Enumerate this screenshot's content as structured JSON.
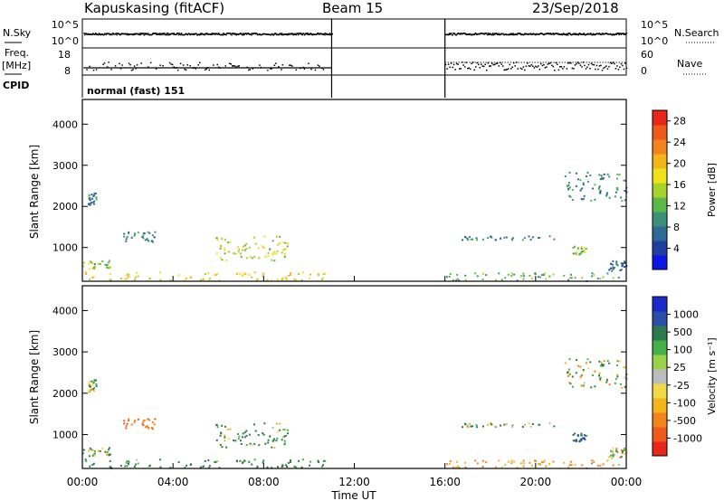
{
  "header": {
    "station": "Kapuskasing (fitACF)",
    "beam": "Beam 15",
    "date": "23/Sep/2018"
  },
  "colors": {
    "power_scale": [
      "#0b16e6",
      "#1f3f9e",
      "#2e6a96",
      "#3d8f7a",
      "#5cb848",
      "#a6d22a",
      "#f0e21a",
      "#f4b51c",
      "#f2841e",
      "#ee5a1c",
      "#e8261a"
    ],
    "velocity_scale": [
      "#e8261a",
      "#ee5a1c",
      "#f2841e",
      "#f4b51c",
      "#f2d94a",
      "#bdbdbd",
      "#9ad04a",
      "#43b04a",
      "#2e7a4f",
      "#2a4fa8",
      "#1b2ac8"
    ],
    "ground_scatter": "#8c8c8c"
  },
  "chart_data": [
    {
      "type": "line",
      "name": "summary",
      "labels": {
        "nsky": "N.Sky",
        "freq": "Freq.",
        "freq_unit": "[MHz]",
        "cpid": "CPID",
        "nsearch": "N.Search",
        "nave": "Nave",
        "mode": "normal (fast) 151"
      },
      "left_ticks": {
        "noise": [
          "10^5",
          "10^0"
        ],
        "freq": [
          "18",
          "8"
        ]
      },
      "right_ticks": {
        "noise": [
          "10^5",
          "10^0"
        ],
        "nave": [
          "60",
          "0"
        ]
      },
      "gap_hours": [
        11,
        16
      ],
      "noise_level": 0.72,
      "freq_mhz": [
        10,
        13
      ],
      "nave_level": [
        16,
        28
      ]
    },
    {
      "type": "heatmap",
      "name": "power",
      "ylabel": "Slant Range [km]",
      "y_ticks": [
        "4000",
        "3000",
        "2000",
        "1000"
      ],
      "ylim": [
        180,
        4600
      ],
      "colorbar_label": "Power [dB]",
      "colorbar_ticks": [
        "28",
        "24",
        "20",
        "16",
        "12",
        "8",
        "4"
      ],
      "colorbar_range": [
        0,
        30
      ]
    },
    {
      "type": "heatmap",
      "name": "velocity",
      "ylabel": "Slant Range [km]",
      "y_ticks": [
        "4000",
        "3000",
        "2000",
        "1000"
      ],
      "ylim": [
        180,
        4600
      ],
      "colorbar_label": "Velocity [m s⁻¹]",
      "colorbar_ticks": [
        "1000",
        "500",
        "100",
        "25",
        "-25",
        "-100",
        "-500",
        "-1000"
      ],
      "xlabel": "Time UT",
      "x_ticks": [
        "00:00",
        "04:00",
        "08:00",
        "12:00",
        "16:00",
        "20:00",
        "00:00"
      ],
      "xlim_hours": [
        0,
        24
      ],
      "scatter_regions": [
        {
          "t": [
            0.0,
            1.2
          ],
          "r": [
            500,
            700
          ],
          "power": 14,
          "velocity": 30
        },
        {
          "t": [
            0.0,
            10.8
          ],
          "r": [
            200,
            420
          ],
          "power": 18,
          "velocity": 60
        },
        {
          "t": [
            1.8,
            3.2
          ],
          "r": [
            1150,
            1400
          ],
          "power": 8,
          "velocity": -100
        },
        {
          "t": [
            5.8,
            9.2
          ],
          "r": [
            700,
            1300
          ],
          "power": 16,
          "velocity": 40
        },
        {
          "t": [
            0.2,
            0.6
          ],
          "r": [
            2050,
            2350
          ],
          "power": 8,
          "velocity": 20
        },
        {
          "t": [
            16.0,
            20.8
          ],
          "r": [
            1200,
            1300
          ],
          "power": 8,
          "velocity": 25
        },
        {
          "t": [
            21.2,
            24.0
          ],
          "r": [
            2150,
            2850
          ],
          "power": 8,
          "velocity": 10
        },
        {
          "t": [
            16.0,
            24.0
          ],
          "r": [
            200,
            400
          ],
          "power": 12,
          "velocity": -50
        },
        {
          "t": [
            21.6,
            22.2
          ],
          "r": [
            850,
            1050
          ],
          "power": 14,
          "velocity": 120
        },
        {
          "t": [
            23.2,
            24.0
          ],
          "r": [
            450,
            700
          ],
          "power": 6,
          "velocity": 0
        }
      ]
    }
  ]
}
